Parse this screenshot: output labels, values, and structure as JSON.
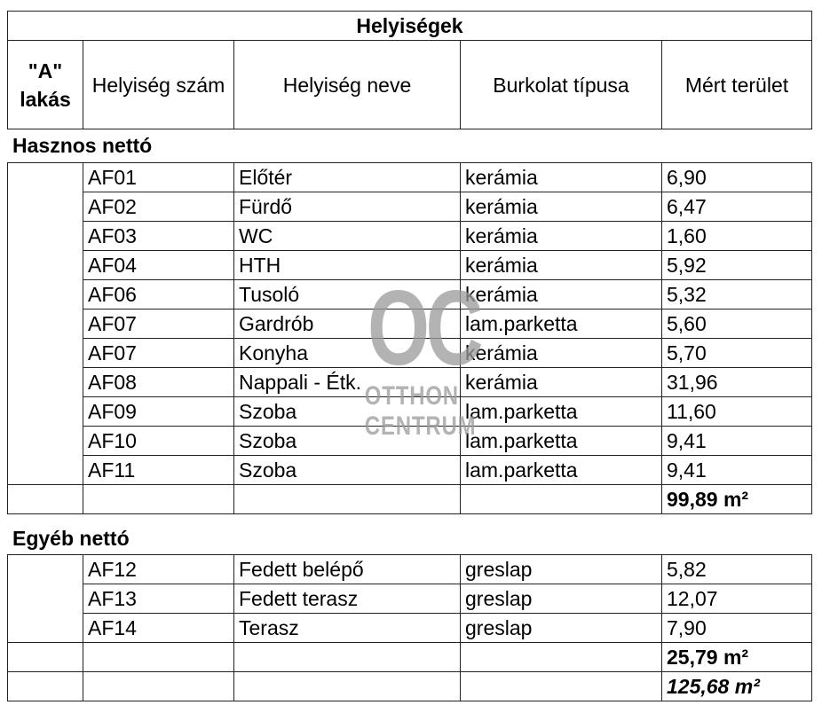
{
  "title": "Helyiségek",
  "headers": {
    "apartment": "\"A\" lakás",
    "number": "Helyiség szám",
    "name": "Helyiség neve",
    "cover": "Burkolat típusa",
    "area": "Mért terület"
  },
  "sections": [
    {
      "label": "Hasznos nettó",
      "rows": [
        {
          "number": "AF01",
          "name": "Előtér",
          "cover": "kerámia",
          "area": "6,90"
        },
        {
          "number": "AF02",
          "name": "Fürdő",
          "cover": "kerámia",
          "area": "6,47"
        },
        {
          "number": "AF03",
          "name": "WC",
          "cover": "kerámia",
          "area": "1,60"
        },
        {
          "number": "AF04",
          "name": "HTH",
          "cover": "kerámia",
          "area": "5,92"
        },
        {
          "number": "AF06",
          "name": "Tusoló",
          "cover": "kerámia",
          "area": "5,32"
        },
        {
          "number": "AF07",
          "name": "Gardrób",
          "cover": "lam.parketta",
          "area": "5,60"
        },
        {
          "number": "AF07",
          "name": "Konyha",
          "cover": "kerámia",
          "area": "5,70"
        },
        {
          "number": "AF08",
          "name": "Nappali - Étk.",
          "cover": "kerámia",
          "area": "31,96"
        },
        {
          "number": "AF09",
          "name": "Szoba",
          "cover": "lam.parketta",
          "area": "11,60"
        },
        {
          "number": "AF10",
          "name": "Szoba",
          "cover": "lam.parketta",
          "area": "9,41"
        },
        {
          "number": "AF11",
          "name": "Szoba",
          "cover": "lam.parketta",
          "area": "9,41"
        }
      ],
      "total": "99,89 m²"
    },
    {
      "label": "Egyéb nettó",
      "rows": [
        {
          "number": "AF12",
          "name": "Fedett belépő",
          "cover": "greslap",
          "area": "5,82"
        },
        {
          "number": "AF13",
          "name": "Fedett terasz",
          "cover": "greslap",
          "area": "12,07"
        },
        {
          "number": "AF14",
          "name": "Terasz",
          "cover": "greslap",
          "area": "7,90"
        }
      ],
      "total": "25,79 m²"
    }
  ],
  "grand_total": "125,68 m²",
  "watermark": {
    "mark": "OC",
    "line1": "OTTHON",
    "line2": "CENTRUM"
  }
}
